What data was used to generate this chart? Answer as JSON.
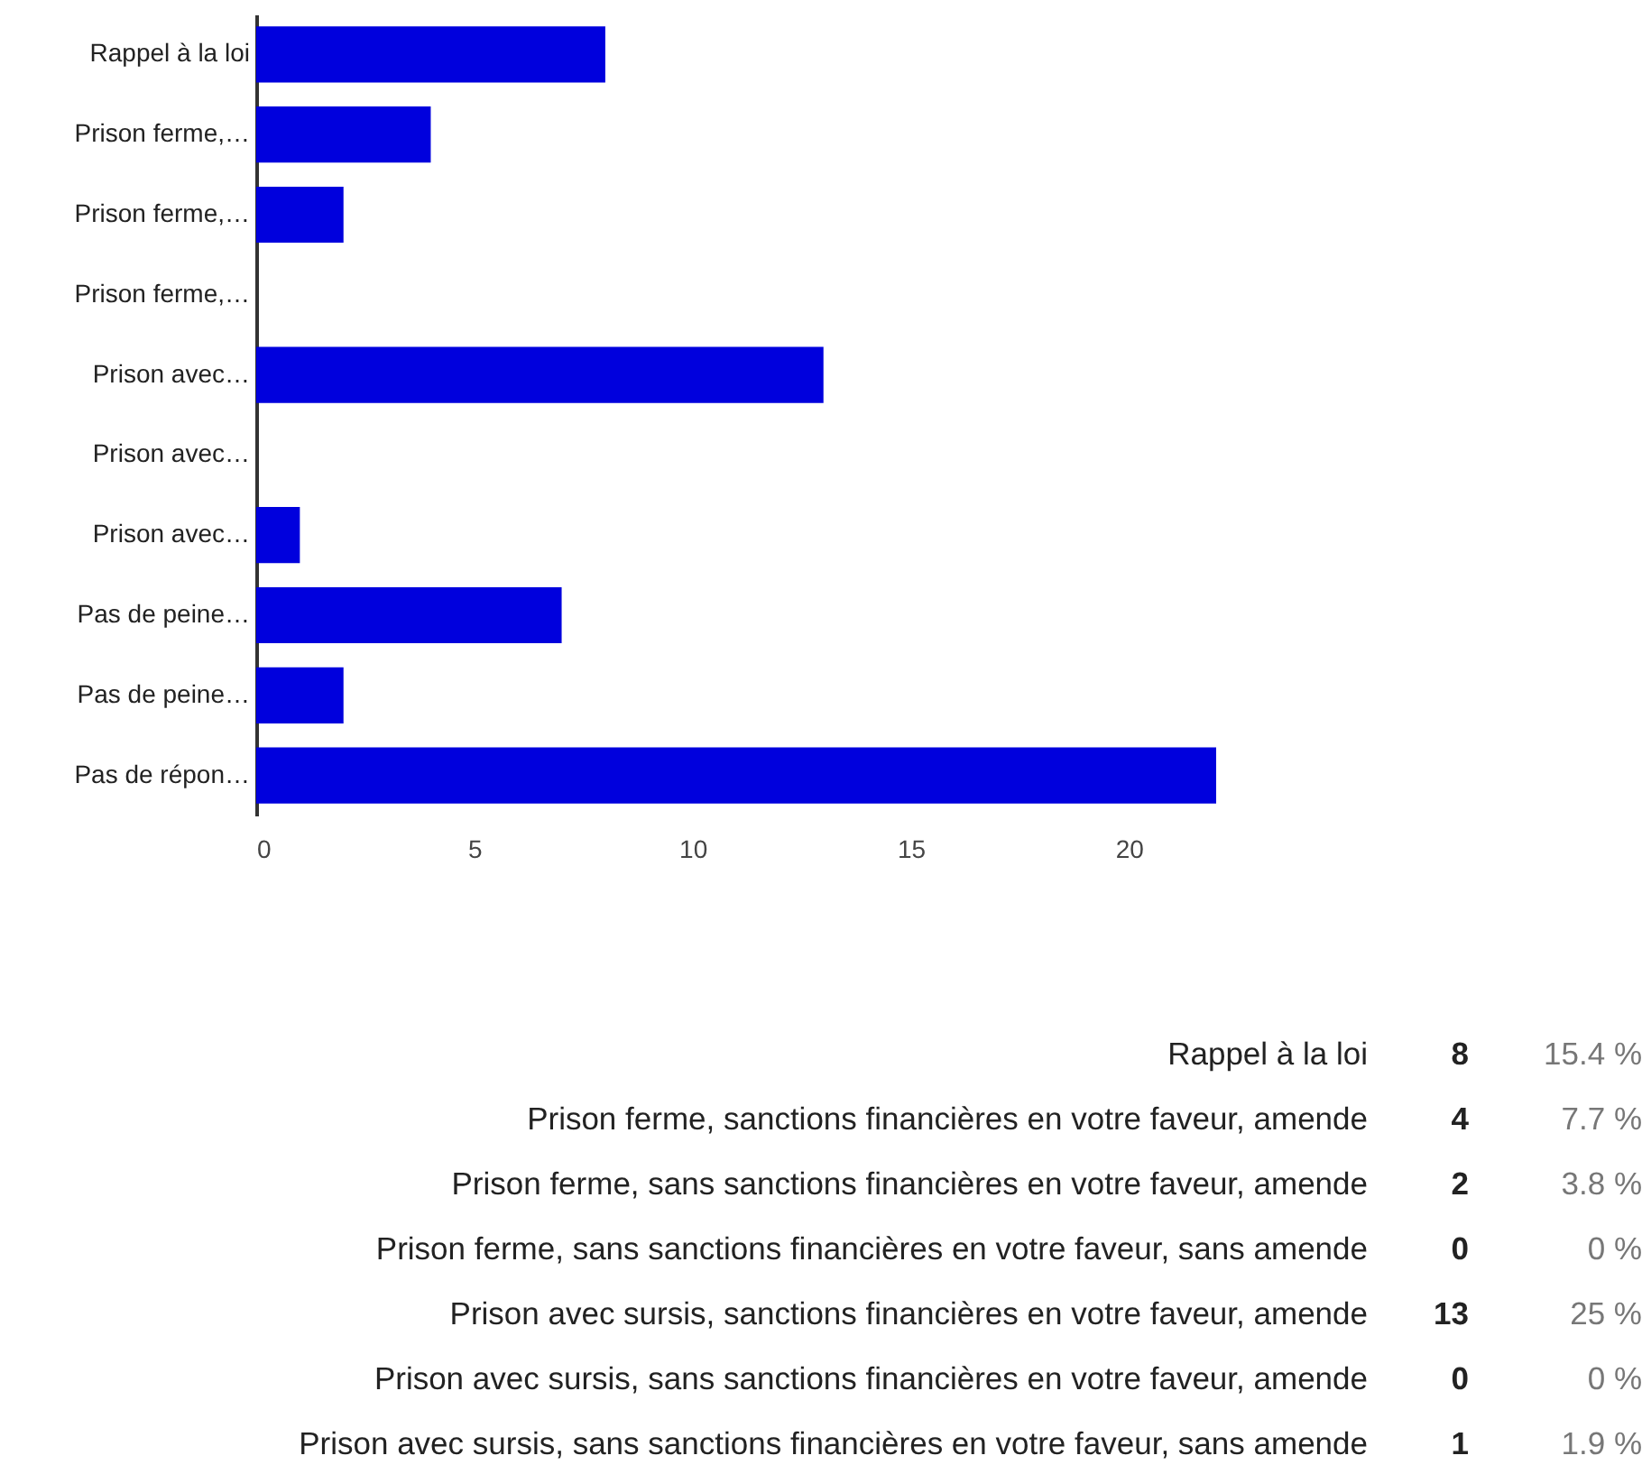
{
  "chart_data": [
    {
      "type": "bar",
      "orientation": "horizontal",
      "categories": [
        "Rappel à la loi",
        "Prison ferme,…",
        "Prison ferme,…",
        "Prison ferme,…",
        "Prison avec…",
        "Prison avec…",
        "Prison avec…",
        "Pas de peine…",
        "Pas de peine…",
        "Pas de répon…"
      ],
      "values": [
        8,
        4,
        2,
        0,
        13,
        0,
        1,
        7,
        2,
        22
      ],
      "color": "#0000dd",
      "xlim": [
        0,
        22
      ],
      "xticks": [
        0,
        5,
        10,
        15,
        20
      ]
    },
    {
      "type": "other",
      "annotations": [
        "Rappel à la loi",
        "8",
        "15.4 %",
        "Prison ferme, sanctions financières en votre faveur, amende",
        "4",
        "7.7 %",
        "Prison ferme, sans sanctions financières en votre faveur, amende",
        "2",
        "3.8 %",
        "Prison ferme, sans sanctions financières en votre faveur, sans amende",
        "0",
        "0 %",
        "Prison avec sursis, sanctions financières en votre faveur, amende",
        "13",
        "25 %",
        "Prison avec sursis, sans sanctions financières en votre faveur, amende",
        "0",
        "0 %",
        "Prison avec sursis, sans sanctions financières en votre faveur, sans amende",
        "1",
        "1.9 %"
      ]
    }
  ]
}
